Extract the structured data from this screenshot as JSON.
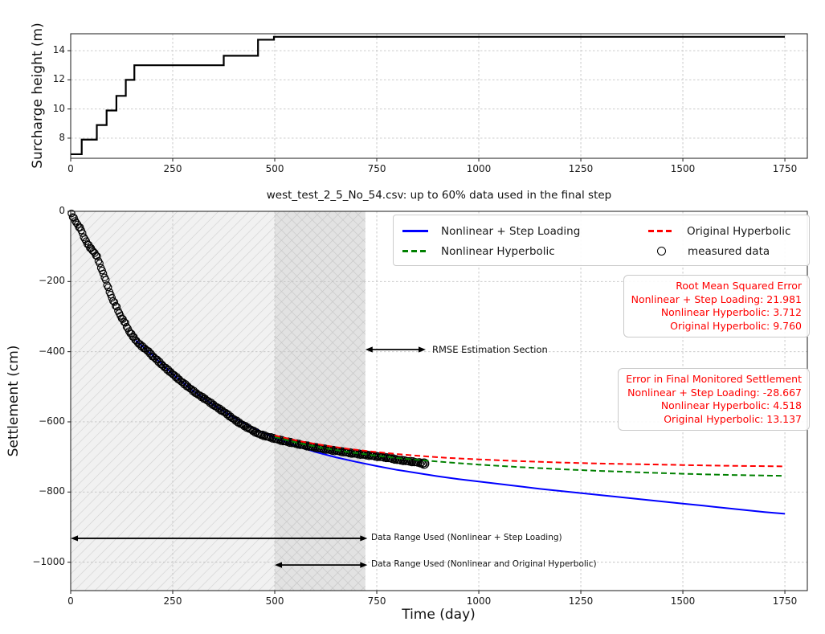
{
  "figure": {
    "background": "#ffffff"
  },
  "chart_data": [
    {
      "type": "line",
      "name": "surcharge-loading-history",
      "title": "",
      "xlabel": "",
      "ylabel": "Surcharge height (m)",
      "xlim": [
        0,
        1805
      ],
      "ylim": [
        6.62,
        15.16
      ],
      "xticks": [
        0,
        250,
        500,
        750,
        1000,
        1250,
        1500,
        1750
      ],
      "yticks": [
        8,
        10,
        12,
        14
      ],
      "grid": true,
      "line_color": "#000000",
      "series": [
        {
          "name": "surcharge height",
          "style": "step-solid",
          "color": "#000000",
          "x": [
            0,
            27,
            27,
            64,
            64,
            88,
            88,
            112,
            112,
            135,
            135,
            156,
            156,
            375,
            375,
            459,
            459,
            498,
            498,
            1750
          ],
          "y": [
            6.9,
            6.9,
            7.9,
            7.9,
            8.9,
            8.9,
            9.9,
            9.9,
            10.9,
            10.9,
            12.0,
            12.0,
            13.0,
            13.0,
            13.65,
            13.65,
            14.75,
            14.75,
            14.95,
            14.95
          ]
        }
      ]
    },
    {
      "type": "scatter+line",
      "name": "settlement-prediction",
      "title": "west_test_2_5_No_54.csv: up to 60% data used in the final step",
      "xlabel": "Time (day)",
      "ylabel": "Settlement (cm)",
      "xlim": [
        0,
        1805
      ],
      "ylim": [
        -1081,
        0
      ],
      "xticks": [
        0,
        250,
        500,
        750,
        1000,
        1250,
        1500,
        1750
      ],
      "yticks": [
        0,
        -200,
        -400,
        -600,
        -800,
        -1000
      ],
      "grid": true,
      "regions": [
        {
          "name": "data range nonlinear + step loading",
          "x0": 0,
          "x1": 722,
          "hatch": "/",
          "fill": "rgba(0,0,0,0.055)",
          "hatch_color": "#cfcfcf"
        },
        {
          "name": "data range nonlinear and original hyperbolic",
          "x0": 500,
          "x1": 722,
          "hatch": "\\",
          "fill": "rgba(0,0,0,0.06)",
          "hatch_color": "#c4c4c4"
        }
      ],
      "legend": {
        "position": "upper right",
        "items": [
          {
            "label": "Nonlinear + Step Loading",
            "color": "#0000ff",
            "style": "solid"
          },
          {
            "label": "Nonlinear Hyperbolic",
            "color": "#008000",
            "style": "dashed"
          },
          {
            "label": "Original Hyperbolic",
            "color": "#ff0000",
            "style": "dashed"
          },
          {
            "label": "measured data",
            "color": "#000000",
            "style": "circle-marker"
          }
        ]
      },
      "series": [
        {
          "name": "measured data",
          "type": "scatter",
          "marker": "open-circle",
          "color": "#000000",
          "points": [
            [
              2,
              -8
            ],
            [
              8,
              -20
            ],
            [
              14,
              -33
            ],
            [
              20,
              -44
            ],
            [
              26,
              -52
            ],
            [
              30,
              -68
            ],
            [
              36,
              -82
            ],
            [
              42,
              -94
            ],
            [
              48,
              -104
            ],
            [
              54,
              -112
            ],
            [
              60,
              -121
            ],
            [
              66,
              -132
            ],
            [
              72,
              -154
            ],
            [
              78,
              -172
            ],
            [
              84,
              -190
            ],
            [
              90,
              -212
            ],
            [
              96,
              -232
            ],
            [
              102,
              -250
            ],
            [
              108,
              -263
            ],
            [
              114,
              -276
            ],
            [
              120,
              -294
            ],
            [
              126,
              -306
            ],
            [
              132,
              -315
            ],
            [
              138,
              -330
            ],
            [
              144,
              -344
            ],
            [
              150,
              -352
            ],
            [
              156,
              -362
            ],
            [
              164,
              -374
            ],
            [
              172,
              -382
            ],
            [
              180,
              -390
            ],
            [
              191,
              -400
            ],
            [
              200,
              -412
            ],
            [
              212,
              -424
            ],
            [
              224,
              -438
            ],
            [
              236,
              -450
            ],
            [
              248,
              -462
            ],
            [
              260,
              -474
            ],
            [
              272,
              -486
            ],
            [
              284,
              -497
            ],
            [
              296,
              -508
            ],
            [
              308,
              -519
            ],
            [
              320,
              -528
            ],
            [
              332,
              -537
            ],
            [
              344,
              -547
            ],
            [
              356,
              -557
            ],
            [
              368,
              -566
            ],
            [
              380,
              -575
            ],
            [
              392,
              -586
            ],
            [
              404,
              -596
            ],
            [
              416,
              -605
            ],
            [
              428,
              -613
            ],
            [
              440,
              -621
            ],
            [
              452,
              -629
            ],
            [
              464,
              -636
            ],
            [
              476,
              -640
            ],
            [
              488,
              -644
            ],
            [
              500,
              -648
            ],
            [
              520,
              -654
            ],
            [
              540,
              -659
            ],
            [
              560,
              -664
            ],
            [
              580,
              -669
            ],
            [
              600,
              -673
            ],
            [
              620,
              -677
            ],
            [
              640,
              -681
            ],
            [
              660,
              -684
            ],
            [
              680,
              -688
            ],
            [
              700,
              -691
            ],
            [
              720,
              -694
            ],
            [
              740,
              -697
            ],
            [
              760,
              -700
            ],
            [
              780,
              -703
            ],
            [
              800,
              -708
            ],
            [
              820,
              -711
            ],
            [
              840,
              -714
            ],
            [
              853,
              -716
            ],
            [
              866,
              -719
            ]
          ]
        },
        {
          "name": "Nonlinear + Step Loading",
          "type": "line",
          "style": "solid",
          "color": "#0000ff",
          "points": [
            [
              160,
              -368
            ],
            [
              200,
              -410
            ],
            [
              250,
              -464
            ],
            [
              300,
              -512
            ],
            [
              350,
              -552
            ],
            [
              400,
              -588
            ],
            [
              450,
              -619
            ],
            [
              500,
              -646
            ],
            [
              550,
              -668
            ],
            [
              600,
              -686
            ],
            [
              650,
              -701
            ],
            [
              700,
              -714
            ],
            [
              750,
              -726
            ],
            [
              800,
              -737
            ],
            [
              850,
              -746
            ],
            [
              900,
              -755
            ],
            [
              950,
              -763
            ],
            [
              1000,
              -770
            ],
            [
              1050,
              -777
            ],
            [
              1100,
              -784
            ],
            [
              1150,
              -791
            ],
            [
              1200,
              -797
            ],
            [
              1250,
              -803
            ],
            [
              1300,
              -809
            ],
            [
              1350,
              -815
            ],
            [
              1400,
              -821
            ],
            [
              1450,
              -827
            ],
            [
              1500,
              -833
            ],
            [
              1550,
              -839
            ],
            [
              1600,
              -845
            ],
            [
              1650,
              -851
            ],
            [
              1700,
              -857
            ],
            [
              1750,
              -862
            ]
          ]
        },
        {
          "name": "Nonlinear Hyperbolic",
          "type": "line",
          "style": "dashed",
          "color": "#008000",
          "points": [
            [
              500,
              -643
            ],
            [
              560,
              -661
            ],
            [
              620,
              -675
            ],
            [
              680,
              -686
            ],
            [
              740,
              -695
            ],
            [
              800,
              -703
            ],
            [
              866,
              -710
            ],
            [
              930,
              -716
            ],
            [
              1000,
              -722
            ],
            [
              1100,
              -729
            ],
            [
              1200,
              -735
            ],
            [
              1300,
              -740
            ],
            [
              1400,
              -744
            ],
            [
              1500,
              -748
            ],
            [
              1600,
              -751
            ],
            [
              1750,
              -754
            ]
          ]
        },
        {
          "name": "Original Hyperbolic",
          "type": "line",
          "style": "dashed",
          "color": "#ff0000",
          "points": [
            [
              500,
              -639
            ],
            [
              560,
              -655
            ],
            [
              620,
              -667
            ],
            [
              680,
              -677
            ],
            [
              740,
              -685
            ],
            [
              800,
              -692
            ],
            [
              866,
              -698
            ],
            [
              930,
              -703
            ],
            [
              1000,
              -707
            ],
            [
              1100,
              -712
            ],
            [
              1200,
              -716
            ],
            [
              1300,
              -719
            ],
            [
              1400,
              -721
            ],
            [
              1500,
              -723
            ],
            [
              1600,
              -725
            ],
            [
              1750,
              -727
            ]
          ]
        }
      ],
      "annotations": {
        "text_color": "#ff0000",
        "rmse_box": {
          "lines": [
            "Root Mean Squared Error",
            "Nonlinear + Step Loading: 21.981",
            "Nonlinear Hyperbolic: 3.712",
            "Original Hyperbolic: 9.760"
          ]
        },
        "error_box": {
          "lines": [
            "Error in Final Monitored Settlement",
            "Nonlinear + Step Loading: -28.667",
            "Nonlinear Hyperbolic: 4.518",
            "Original Hyperbolic: 13.137"
          ]
        },
        "rmse_section": {
          "label": "RMSE Estimation Section",
          "arrow_t": [
            722,
            870
          ],
          "y": -394
        },
        "range_step": {
          "label": "Data Range Used (Nonlinear + Step Loading)",
          "arrow_t": [
            0,
            727
          ],
          "y": -932
        },
        "range_hyp": {
          "label": "Data Range Used (Nonlinear and Original Hyperbolic)",
          "arrow_t": [
            500,
            727
          ],
          "y": -1008
        }
      }
    }
  ]
}
